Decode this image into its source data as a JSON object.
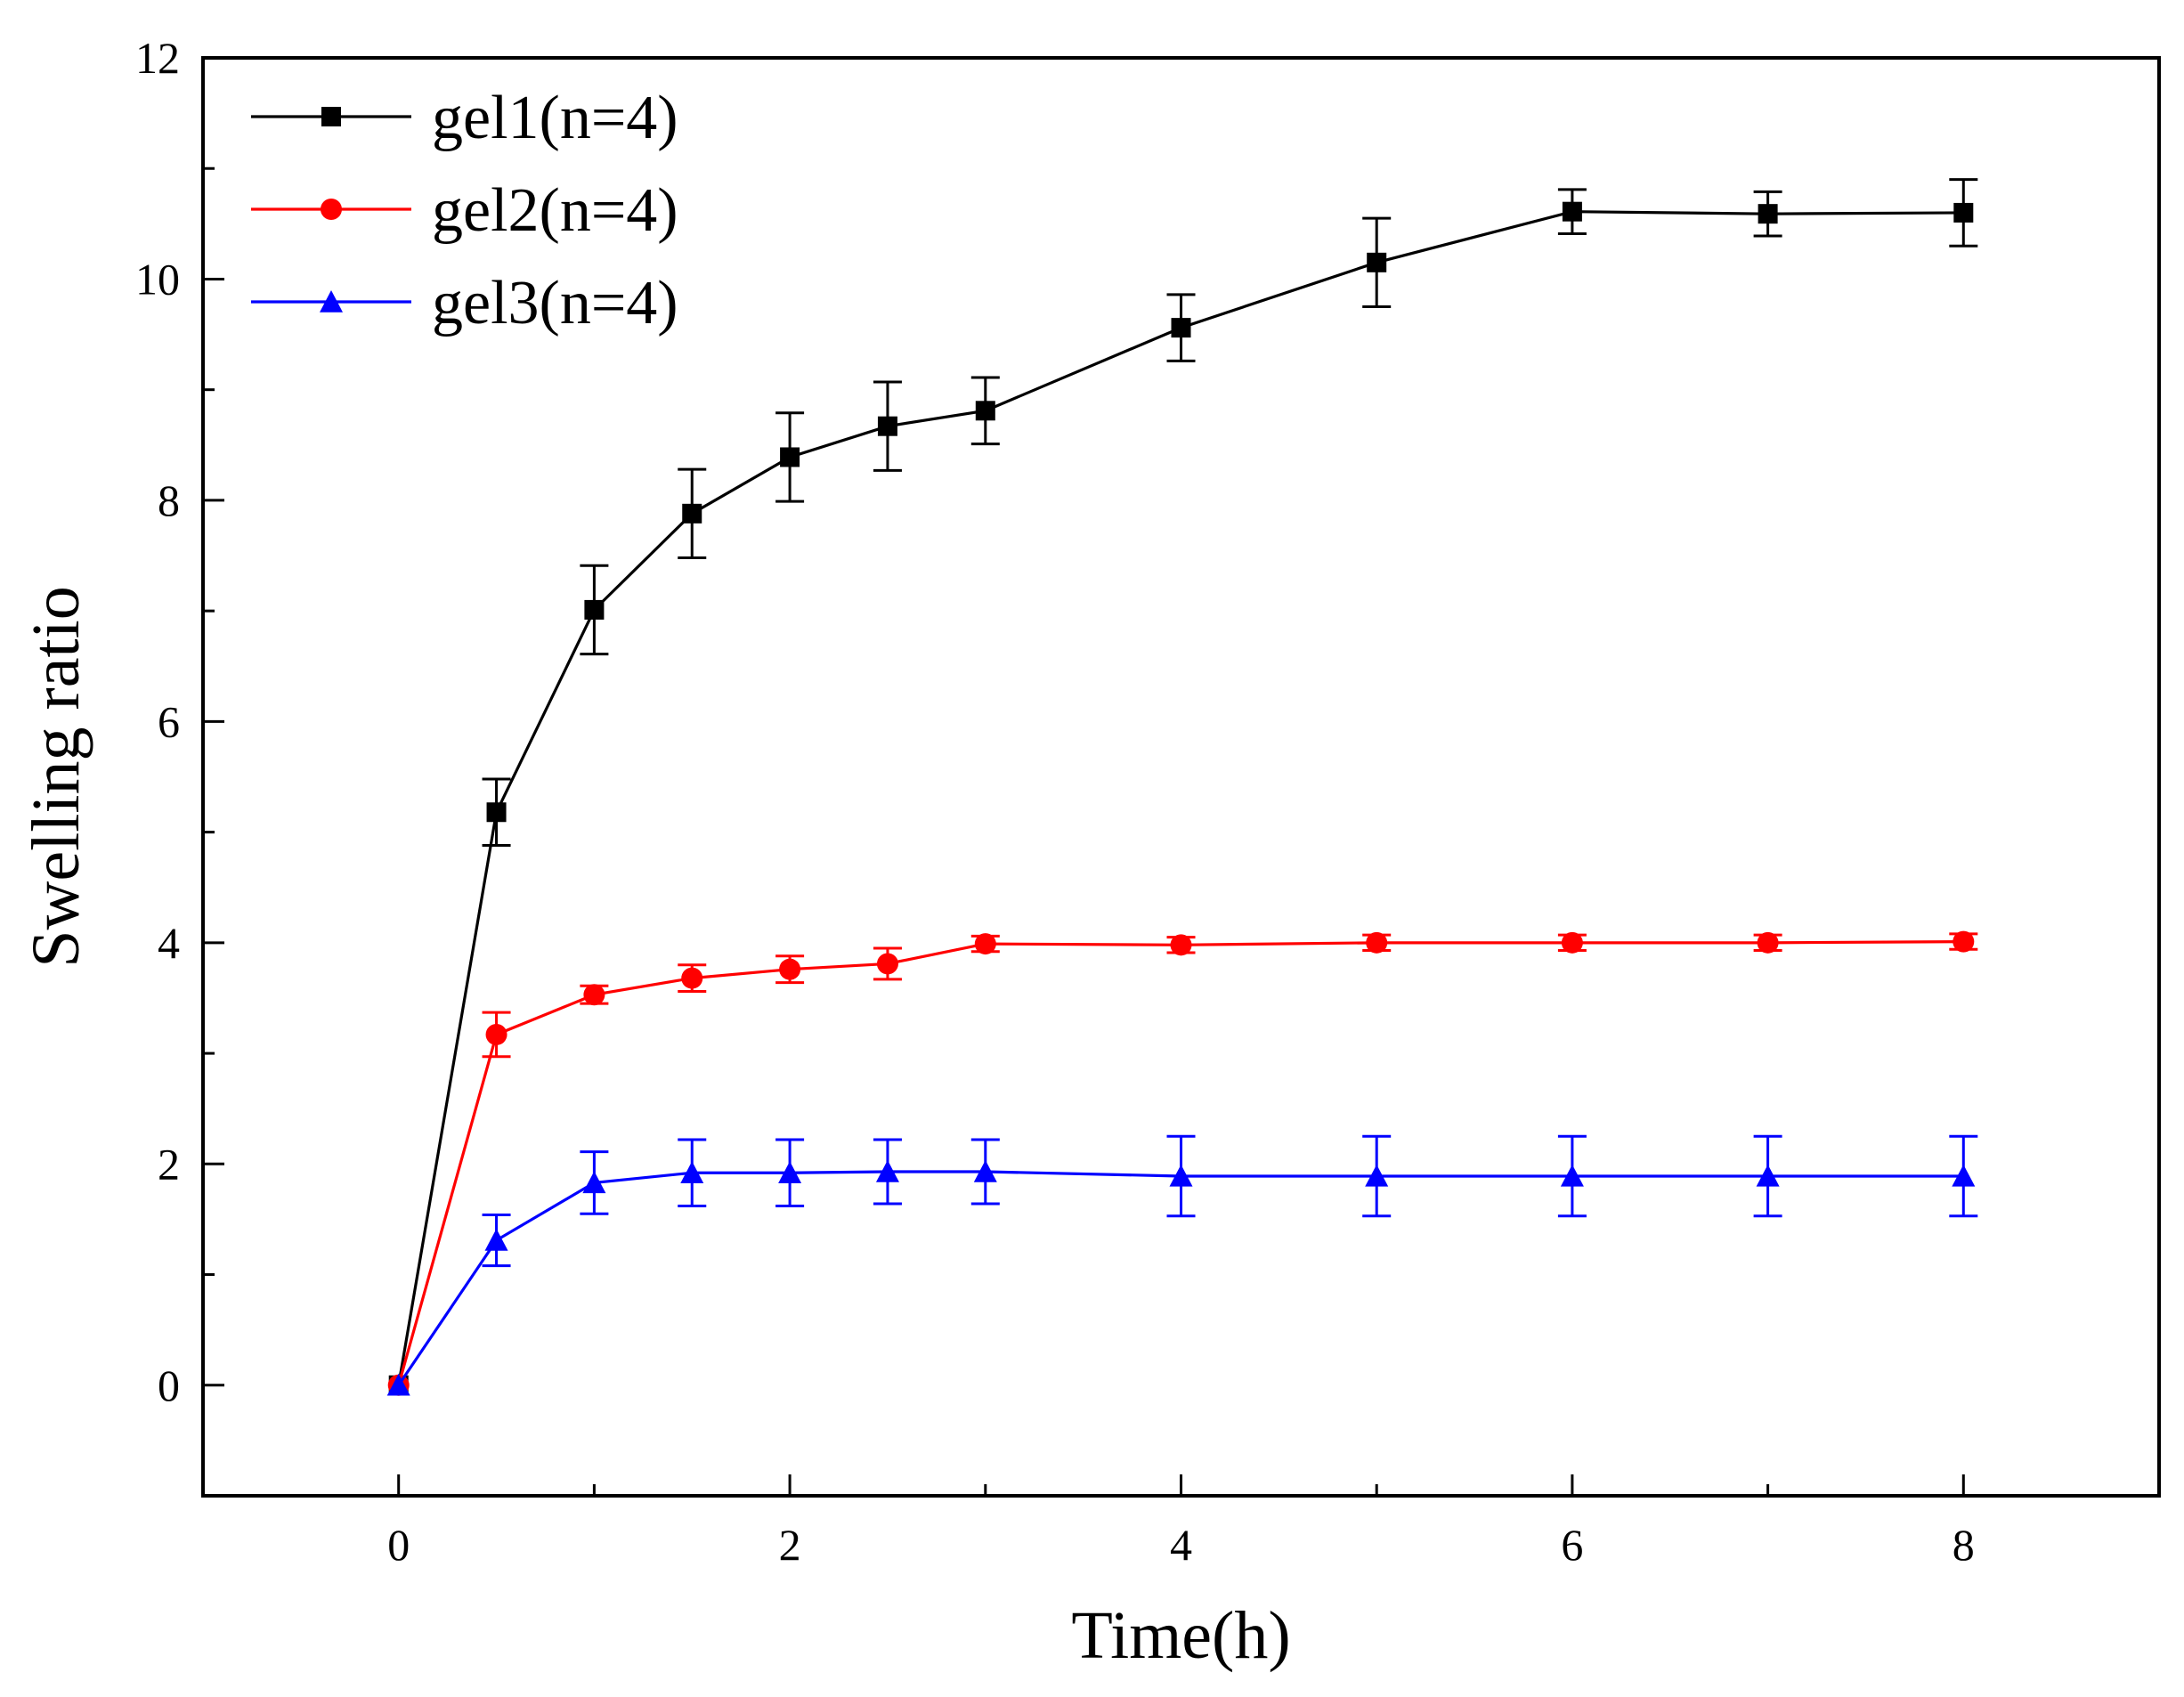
{
  "chart_data": {
    "type": "line",
    "title": "",
    "xlabel": "Time(h)",
    "ylabel": "Swelling ratio",
    "xlim": [
      -1,
      9
    ],
    "ylim": [
      -1,
      12
    ],
    "xticks": [
      0,
      2,
      4,
      6,
      8
    ],
    "xtick_labels": [
      "0",
      "2",
      "4",
      "6",
      "8"
    ],
    "yticks": [
      0,
      2,
      4,
      6,
      8,
      10,
      12
    ],
    "ytick_labels": [
      "0",
      "2",
      "4",
      "6",
      "8",
      "10",
      "12"
    ],
    "x_minor_step": 1,
    "y_minor_step": 1,
    "grid": false,
    "legend_position": "top-left",
    "series": [
      {
        "name": "gel1(n=4)",
        "color": "#000000",
        "marker": "square",
        "x": [
          0,
          0.5,
          1,
          1.5,
          2,
          2.5,
          3,
          4,
          5,
          6,
          7,
          8
        ],
        "y": [
          0,
          5.18,
          7.01,
          7.88,
          8.39,
          8.67,
          8.81,
          9.56,
          10.15,
          10.61,
          10.59,
          10.6
        ],
        "err": [
          0,
          0.3,
          0.4,
          0.4,
          0.4,
          0.4,
          0.3,
          0.3,
          0.4,
          0.2,
          0.2,
          0.3
        ]
      },
      {
        "name": "gel2(n=4)",
        "color": "#ff0000",
        "marker": "circle",
        "x": [
          0,
          0.5,
          1,
          1.5,
          2,
          2.5,
          3,
          4,
          5,
          6,
          7,
          8
        ],
        "y": [
          0,
          3.17,
          3.53,
          3.68,
          3.76,
          3.81,
          3.99,
          3.98,
          4.0,
          4.0,
          4.0,
          4.01
        ],
        "err": [
          0,
          0.2,
          0.08,
          0.12,
          0.12,
          0.14,
          0.07,
          0.07,
          0.07,
          0.07,
          0.07,
          0.07
        ]
      },
      {
        "name": "gel3(n=4)",
        "color": "#0000ff",
        "marker": "triangle",
        "x": [
          0,
          0.5,
          1,
          1.5,
          2,
          2.5,
          3,
          4,
          5,
          6,
          7,
          8
        ],
        "y": [
          0,
          1.31,
          1.83,
          1.92,
          1.92,
          1.93,
          1.93,
          1.89,
          1.89,
          1.89,
          1.89,
          1.89
        ],
        "err": [
          0,
          0.23,
          0.28,
          0.3,
          0.3,
          0.29,
          0.29,
          0.36,
          0.36,
          0.36,
          0.36,
          0.36
        ]
      }
    ]
  }
}
